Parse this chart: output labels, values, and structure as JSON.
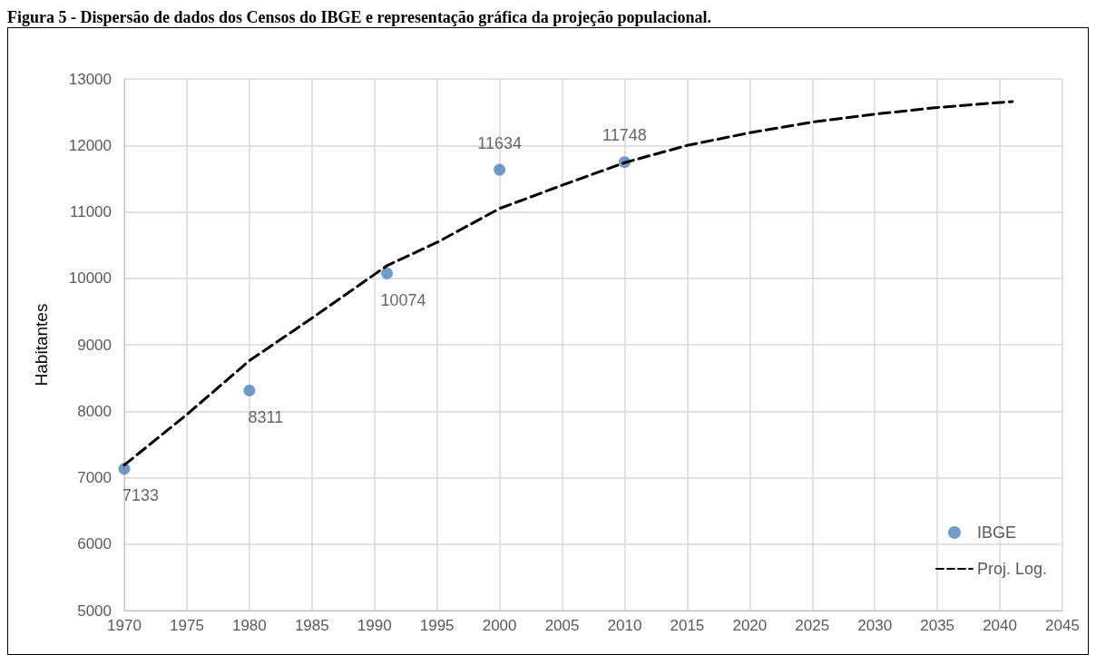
{
  "chart_data": {
    "type": "scatter",
    "title": "Figura 5 - Dispersão de dados dos Censos do IBGE e representação gráfica da projeção populacional.",
    "ylabel": "Habitantes",
    "series": [
      {
        "name": "IBGE",
        "color": "#4f81bd",
        "marker": "circle",
        "x": [
          1970,
          1980,
          1991,
          2000,
          2010
        ],
        "values": [
          7133,
          8311,
          10074,
          11634,
          11748
        ],
        "data_labels": true
      },
      {
        "name": "Proj. Log.",
        "type": "line",
        "color": "#000000",
        "line_style": "dashed",
        "marker": "none",
        "x": [
          1970,
          1975,
          1980,
          1985,
          1991,
          1995,
          2000,
          2005,
          2010,
          2015,
          2020,
          2025,
          2030,
          2035,
          2041
        ],
        "values": [
          7190,
          7950,
          8760,
          9400,
          10190,
          10540,
          11050,
          11400,
          11740,
          12000,
          12190,
          12350,
          12470,
          12570,
          12660
        ]
      }
    ],
    "xlim": [
      1970,
      2045
    ],
    "xticks": [
      1970,
      1975,
      1980,
      1985,
      1990,
      1995,
      2000,
      2005,
      2010,
      2015,
      2020,
      2025,
      2030,
      2035,
      2040,
      2045
    ],
    "ylim": [
      5000,
      13000
    ],
    "yticks": [
      5000,
      6000,
      7000,
      8000,
      9000,
      10000,
      11000,
      12000,
      13000
    ],
    "grid": true,
    "legend": "bottom right"
  }
}
